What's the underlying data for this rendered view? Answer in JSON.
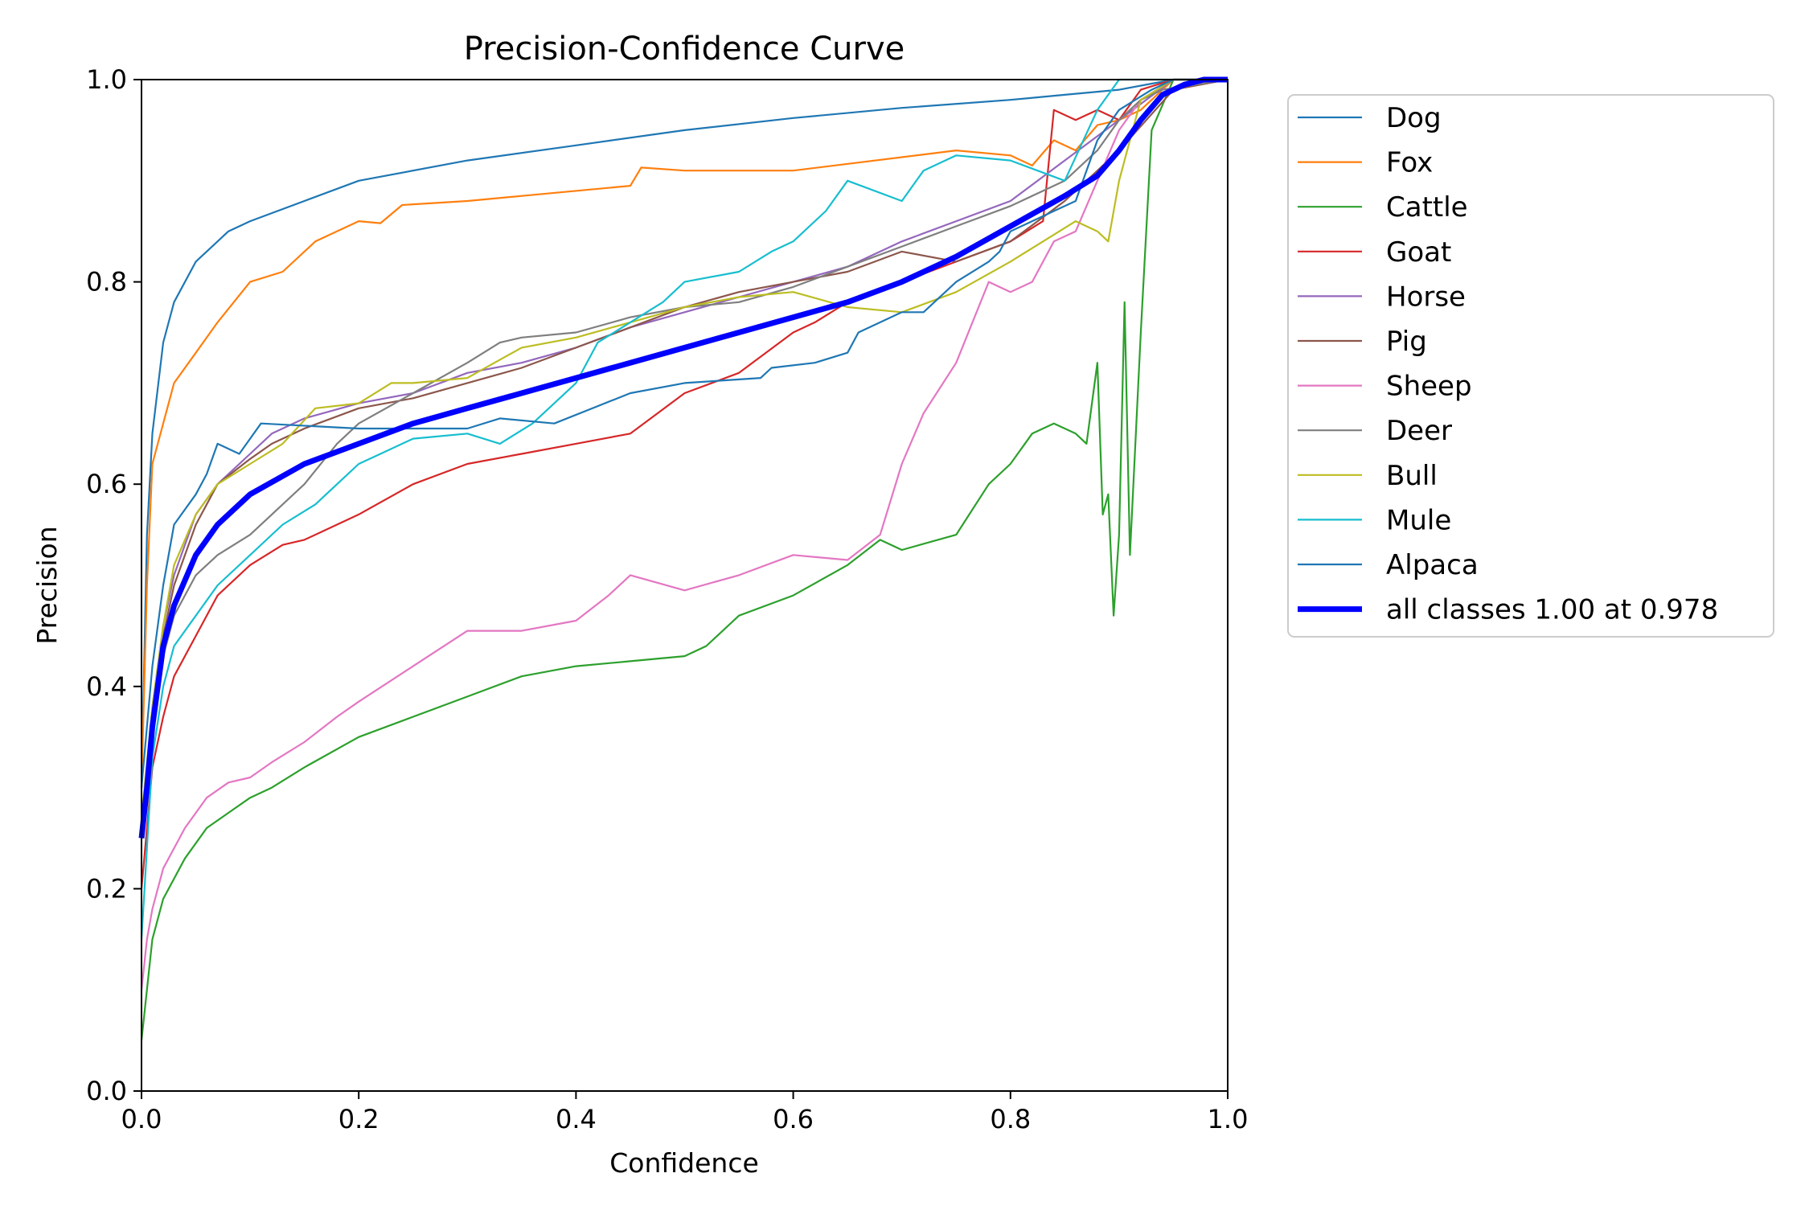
{
  "chart_data": {
    "type": "line",
    "title": "Precision-Confidence Curve",
    "xlabel": "Confidence",
    "ylabel": "Precision",
    "xlim": [
      0,
      1
    ],
    "ylim": [
      0,
      1
    ],
    "xticks": [
      0.0,
      0.2,
      0.4,
      0.6,
      0.8,
      1.0
    ],
    "yticks": [
      0.0,
      0.2,
      0.4,
      0.6,
      0.8,
      1.0
    ],
    "xtick_labels": [
      "0.0",
      "0.2",
      "0.4",
      "0.6",
      "0.8",
      "1.0"
    ],
    "ytick_labels": [
      "0.0",
      "0.2",
      "0.4",
      "0.6",
      "0.8",
      "1.0"
    ],
    "legend_position": "outside upper-right",
    "series": [
      {
        "name": "Dog",
        "color": "#1f77b4",
        "x": [
          0,
          0.005,
          0.01,
          0.02,
          0.03,
          0.05,
          0.08,
          0.1,
          0.15,
          0.2,
          0.3,
          0.4,
          0.5,
          0.6,
          0.7,
          0.8,
          0.85,
          0.9,
          0.95,
          1.0
        ],
        "y": [
          0.3,
          0.55,
          0.65,
          0.74,
          0.78,
          0.82,
          0.85,
          0.86,
          0.88,
          0.9,
          0.92,
          0.935,
          0.95,
          0.962,
          0.972,
          0.98,
          0.985,
          0.99,
          1.0,
          1.0
        ]
      },
      {
        "name": "Fox",
        "color": "#ff7f0e",
        "x": [
          0,
          0.005,
          0.01,
          0.03,
          0.05,
          0.07,
          0.1,
          0.13,
          0.16,
          0.2,
          0.22,
          0.24,
          0.3,
          0.35,
          0.45,
          0.46,
          0.5,
          0.6,
          0.75,
          0.8,
          0.82,
          0.84,
          0.86,
          0.88,
          0.9,
          0.92,
          0.95,
          1.0
        ],
        "y": [
          0.3,
          0.5,
          0.62,
          0.7,
          0.73,
          0.76,
          0.8,
          0.81,
          0.84,
          0.86,
          0.858,
          0.876,
          0.88,
          0.885,
          0.895,
          0.913,
          0.91,
          0.91,
          0.93,
          0.925,
          0.915,
          0.94,
          0.93,
          0.955,
          0.96,
          0.97,
          1.0,
          1.0
        ]
      },
      {
        "name": "Cattle",
        "color": "#2ca02c",
        "x": [
          0,
          0.01,
          0.02,
          0.04,
          0.06,
          0.08,
          0.1,
          0.12,
          0.15,
          0.2,
          0.25,
          0.3,
          0.35,
          0.4,
          0.45,
          0.5,
          0.52,
          0.55,
          0.6,
          0.65,
          0.68,
          0.7,
          0.75,
          0.78,
          0.8,
          0.82,
          0.84,
          0.86,
          0.87,
          0.88,
          0.885,
          0.89,
          0.895,
          0.9,
          0.905,
          0.91,
          0.92,
          0.93,
          0.95,
          1.0
        ],
        "y": [
          0.05,
          0.15,
          0.19,
          0.23,
          0.26,
          0.275,
          0.29,
          0.3,
          0.32,
          0.35,
          0.37,
          0.39,
          0.41,
          0.42,
          0.425,
          0.43,
          0.44,
          0.47,
          0.49,
          0.52,
          0.545,
          0.535,
          0.55,
          0.6,
          0.62,
          0.65,
          0.66,
          0.65,
          0.64,
          0.72,
          0.57,
          0.59,
          0.47,
          0.55,
          0.78,
          0.53,
          0.75,
          0.95,
          1.0,
          1.0
        ]
      },
      {
        "name": "Goat",
        "color": "#d62728",
        "x": [
          0,
          0.005,
          0.01,
          0.02,
          0.03,
          0.05,
          0.07,
          0.1,
          0.13,
          0.15,
          0.18,
          0.2,
          0.25,
          0.3,
          0.35,
          0.4,
          0.45,
          0.5,
          0.55,
          0.6,
          0.62,
          0.65,
          0.7,
          0.75,
          0.8,
          0.83,
          0.84,
          0.86,
          0.88,
          0.9,
          0.92,
          0.95,
          1.0
        ],
        "y": [
          0.2,
          0.26,
          0.32,
          0.37,
          0.41,
          0.45,
          0.49,
          0.52,
          0.54,
          0.545,
          0.56,
          0.57,
          0.6,
          0.62,
          0.63,
          0.64,
          0.65,
          0.69,
          0.71,
          0.75,
          0.76,
          0.78,
          0.8,
          0.82,
          0.84,
          0.86,
          0.97,
          0.96,
          0.97,
          0.96,
          0.99,
          1.0,
          1.0
        ]
      },
      {
        "name": "Horse",
        "color": "#9467bd",
        "x": [
          0,
          0.01,
          0.02,
          0.03,
          0.05,
          0.07,
          0.1,
          0.12,
          0.15,
          0.2,
          0.25,
          0.3,
          0.35,
          0.4,
          0.45,
          0.5,
          0.55,
          0.6,
          0.65,
          0.7,
          0.75,
          0.8,
          0.85,
          0.9,
          0.95,
          1.0
        ],
        "y": [
          0.25,
          0.38,
          0.46,
          0.51,
          0.57,
          0.6,
          0.63,
          0.65,
          0.665,
          0.68,
          0.69,
          0.71,
          0.72,
          0.735,
          0.755,
          0.77,
          0.785,
          0.8,
          0.815,
          0.84,
          0.86,
          0.88,
          0.92,
          0.96,
          1.0,
          1.0
        ]
      },
      {
        "name": "Pig",
        "color": "#8c564b",
        "x": [
          0,
          0.01,
          0.02,
          0.03,
          0.05,
          0.07,
          0.1,
          0.12,
          0.15,
          0.2,
          0.25,
          0.3,
          0.35,
          0.4,
          0.45,
          0.5,
          0.55,
          0.6,
          0.65,
          0.7,
          0.75,
          0.8,
          0.85,
          0.9,
          0.95,
          1.0
        ],
        "y": [
          0.25,
          0.37,
          0.45,
          0.5,
          0.56,
          0.6,
          0.625,
          0.64,
          0.655,
          0.675,
          0.685,
          0.7,
          0.715,
          0.735,
          0.755,
          0.775,
          0.79,
          0.8,
          0.81,
          0.83,
          0.82,
          0.84,
          0.88,
          0.93,
          0.99,
          1.0
        ]
      },
      {
        "name": "Sheep",
        "color": "#e377c2",
        "x": [
          0,
          0.005,
          0.01,
          0.02,
          0.04,
          0.06,
          0.08,
          0.1,
          0.12,
          0.15,
          0.18,
          0.2,
          0.25,
          0.3,
          0.35,
          0.4,
          0.43,
          0.45,
          0.5,
          0.55,
          0.6,
          0.65,
          0.68,
          0.7,
          0.72,
          0.75,
          0.78,
          0.8,
          0.82,
          0.84,
          0.86,
          0.88,
          0.9,
          0.92,
          0.95,
          1.0
        ],
        "y": [
          0.1,
          0.15,
          0.18,
          0.22,
          0.26,
          0.29,
          0.305,
          0.31,
          0.325,
          0.345,
          0.37,
          0.385,
          0.42,
          0.455,
          0.455,
          0.465,
          0.49,
          0.51,
          0.495,
          0.51,
          0.53,
          0.525,
          0.55,
          0.62,
          0.67,
          0.72,
          0.8,
          0.79,
          0.8,
          0.84,
          0.85,
          0.9,
          0.95,
          0.98,
          1.0,
          1.0
        ]
      },
      {
        "name": "Deer",
        "color": "#7f7f7f",
        "x": [
          0,
          0.01,
          0.02,
          0.03,
          0.05,
          0.07,
          0.1,
          0.12,
          0.15,
          0.18,
          0.2,
          0.25,
          0.3,
          0.33,
          0.35,
          0.4,
          0.45,
          0.5,
          0.55,
          0.6,
          0.65,
          0.7,
          0.75,
          0.8,
          0.85,
          0.88,
          0.9,
          0.92,
          0.94,
          1.0
        ],
        "y": [
          0.25,
          0.35,
          0.43,
          0.47,
          0.51,
          0.53,
          0.55,
          0.57,
          0.6,
          0.64,
          0.66,
          0.69,
          0.72,
          0.74,
          0.745,
          0.75,
          0.765,
          0.775,
          0.78,
          0.795,
          0.815,
          0.835,
          0.855,
          0.875,
          0.9,
          0.93,
          0.96,
          0.98,
          0.99,
          1.0
        ]
      },
      {
        "name": "Bull",
        "color": "#bcbd22",
        "x": [
          0,
          0.01,
          0.02,
          0.03,
          0.05,
          0.07,
          0.1,
          0.13,
          0.16,
          0.2,
          0.23,
          0.25,
          0.3,
          0.35,
          0.4,
          0.45,
          0.5,
          0.55,
          0.6,
          0.65,
          0.7,
          0.75,
          0.8,
          0.83,
          0.86,
          0.88,
          0.89,
          0.9,
          0.92,
          0.95,
          1.0
        ],
        "y": [
          0.27,
          0.38,
          0.46,
          0.52,
          0.57,
          0.6,
          0.62,
          0.64,
          0.675,
          0.68,
          0.7,
          0.7,
          0.705,
          0.735,
          0.745,
          0.76,
          0.775,
          0.785,
          0.79,
          0.775,
          0.77,
          0.79,
          0.82,
          0.84,
          0.86,
          0.85,
          0.84,
          0.9,
          0.98,
          1.0,
          1.0
        ]
      },
      {
        "name": "Mule",
        "color": "#17becf",
        "x": [
          0,
          0.01,
          0.02,
          0.03,
          0.05,
          0.07,
          0.1,
          0.13,
          0.16,
          0.18,
          0.2,
          0.22,
          0.25,
          0.3,
          0.33,
          0.36,
          0.4,
          0.42,
          0.45,
          0.48,
          0.5,
          0.55,
          0.58,
          0.6,
          0.63,
          0.65,
          0.7,
          0.72,
          0.75,
          0.8,
          0.85,
          0.88,
          0.9,
          0.93,
          1.0
        ],
        "y": [
          0.15,
          0.33,
          0.4,
          0.44,
          0.47,
          0.5,
          0.53,
          0.56,
          0.58,
          0.6,
          0.62,
          0.63,
          0.645,
          0.65,
          0.64,
          0.66,
          0.7,
          0.74,
          0.76,
          0.78,
          0.8,
          0.81,
          0.83,
          0.84,
          0.87,
          0.9,
          0.88,
          0.91,
          0.925,
          0.92,
          0.9,
          0.97,
          1.0,
          1.0,
          1.0
        ]
      },
      {
        "name": "Alpaca",
        "color": "#1f77b4",
        "x": [
          0,
          0.01,
          0.02,
          0.03,
          0.05,
          0.06,
          0.07,
          0.09,
          0.1,
          0.11,
          0.2,
          0.3,
          0.33,
          0.38,
          0.45,
          0.5,
          0.57,
          0.58,
          0.62,
          0.65,
          0.66,
          0.7,
          0.72,
          0.75,
          0.78,
          0.79,
          0.8,
          0.82,
          0.84,
          0.86,
          0.88,
          0.9,
          0.93,
          0.95,
          1.0
        ],
        "y": [
          0.3,
          0.42,
          0.5,
          0.56,
          0.59,
          0.61,
          0.64,
          0.63,
          0.645,
          0.66,
          0.655,
          0.655,
          0.665,
          0.66,
          0.69,
          0.7,
          0.705,
          0.715,
          0.72,
          0.73,
          0.75,
          0.77,
          0.77,
          0.8,
          0.82,
          0.83,
          0.85,
          0.86,
          0.87,
          0.88,
          0.94,
          0.97,
          0.99,
          1.0,
          1.0
        ]
      },
      {
        "name": "all classes 1.00 at 0.978",
        "color": "#0000ff",
        "thick": true,
        "x": [
          0,
          0.005,
          0.01,
          0.02,
          0.03,
          0.05,
          0.07,
          0.1,
          0.15,
          0.2,
          0.25,
          0.3,
          0.35,
          0.4,
          0.45,
          0.5,
          0.55,
          0.6,
          0.65,
          0.7,
          0.75,
          0.8,
          0.85,
          0.88,
          0.9,
          0.92,
          0.94,
          0.96,
          0.978,
          1.0
        ],
        "y": [
          0.25,
          0.3,
          0.36,
          0.44,
          0.48,
          0.53,
          0.56,
          0.59,
          0.62,
          0.64,
          0.66,
          0.675,
          0.69,
          0.705,
          0.72,
          0.735,
          0.75,
          0.765,
          0.78,
          0.8,
          0.825,
          0.855,
          0.885,
          0.905,
          0.93,
          0.96,
          0.985,
          0.995,
          1.0,
          1.0
        ]
      }
    ]
  }
}
